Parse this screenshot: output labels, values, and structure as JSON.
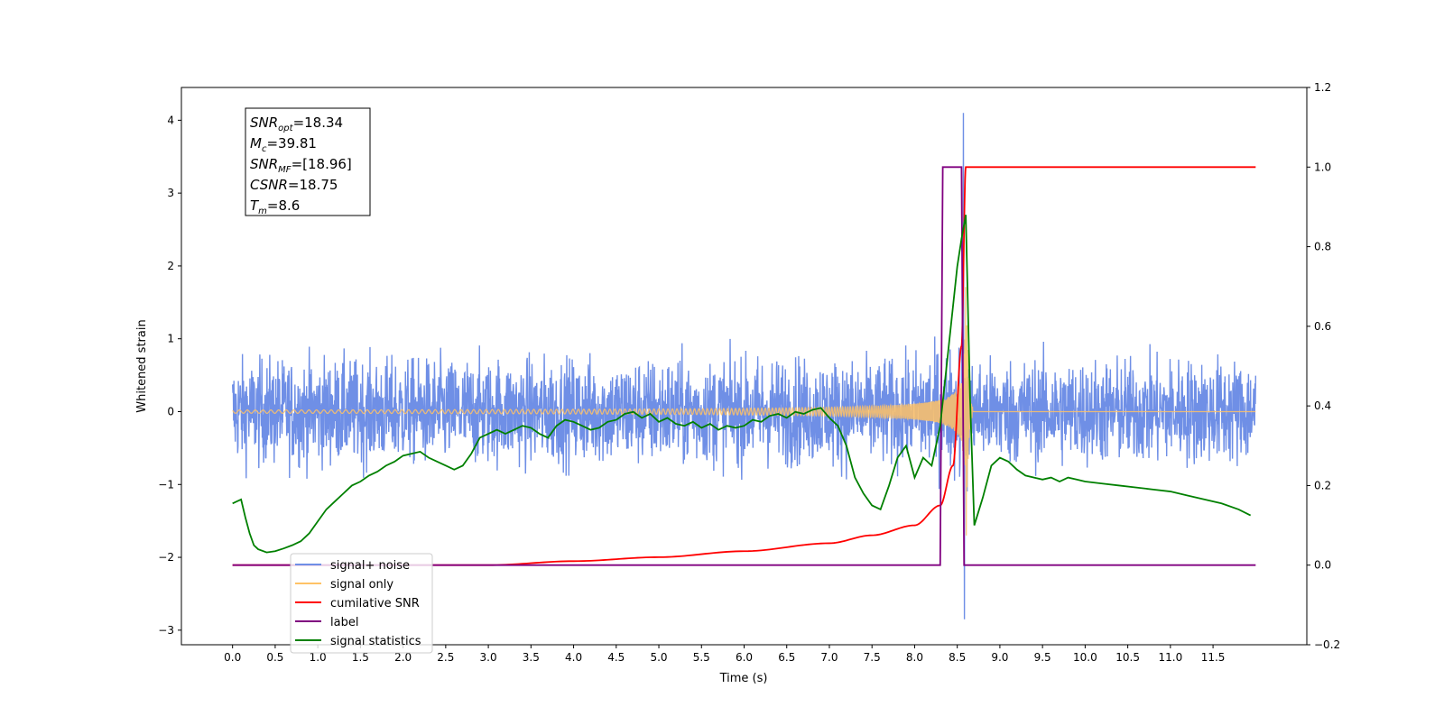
{
  "chart_data": {
    "type": "line",
    "xlabel": "Time (s)",
    "ylabel": "Whitened strain",
    "xlim": [
      -0.6,
      12.6
    ],
    "ylim": [
      -3.2,
      4.45
    ],
    "ylim_right": [
      -0.2,
      1.2
    ],
    "xticks": [
      0.0,
      0.5,
      1.0,
      1.5,
      2.0,
      2.5,
      3.0,
      3.5,
      4.0,
      4.5,
      5.0,
      5.5,
      6.0,
      6.5,
      7.0,
      7.5,
      8.0,
      8.5,
      9.0,
      9.5,
      10.0,
      10.5,
      11.0,
      11.5
    ],
    "xtick_labels": [
      "0.0",
      "0.5",
      "1.0",
      "1.5",
      "2.0",
      "2.5",
      "3.0",
      "3.5",
      "4.0",
      "4.5",
      "5.0",
      "5.5",
      "6.0",
      "6.5",
      "7.0",
      "7.5",
      "8.0",
      "8.5",
      "9.0",
      "9.5",
      "10.0",
      "10.5",
      "11.0",
      "11.5"
    ],
    "yticks_left": [
      -3,
      -2,
      -1,
      0,
      1,
      2,
      3,
      4
    ],
    "ytick_labels_left": [
      "−3",
      "−2",
      "−1",
      "0",
      "1",
      "2",
      "3",
      "4"
    ],
    "yticks_right": [
      -0.2,
      0.0,
      0.2,
      0.4,
      0.6,
      0.8,
      1.0,
      1.2
    ],
    "ytick_labels_right": [
      "−0.2",
      "0.0",
      "0.2",
      "0.4",
      "0.6",
      "0.8",
      "1.0",
      "1.2"
    ],
    "annotation": [
      {
        "base": "SNR",
        "sub": "opt",
        "value": "=18.34"
      },
      {
        "base": "M",
        "sub": "c",
        "value": "=39.81"
      },
      {
        "base": "SNR",
        "sub": "MF",
        "value": "=[18.96]"
      },
      {
        "base": "CSNR",
        "sub": "",
        "value": "=18.75"
      },
      {
        "base": "T",
        "sub": "m",
        "value": "=8.6"
      }
    ],
    "legend": {
      "placement": "lower-left",
      "entries": [
        {
          "label": "signal+ noise",
          "color": "#6f8fe6"
        },
        {
          "label": "signal only",
          "color": "#ffc266"
        },
        {
          "label": "cumilative SNR",
          "color": "#ff0000"
        },
        {
          "label": "label",
          "color": "#800080"
        },
        {
          "label": "signal statistics",
          "color": "#008000"
        }
      ]
    },
    "series": [
      {
        "name": "signal+ noise",
        "axis": "left",
        "color": "#6f8fe6",
        "x_range": [
          0.0,
          12.0
        ],
        "noise_amplitude": 0.65,
        "peak_x": 8.57,
        "peak_max": 4.1,
        "peak_min": -2.85
      },
      {
        "name": "signal only",
        "axis": "left",
        "color": "#ffc266",
        "x_range": [
          0.0,
          12.0
        ],
        "merger_time": 8.6,
        "peak_amplitude": 2.3
      },
      {
        "name": "cumilative SNR",
        "axis": "right",
        "color": "#ff0000",
        "x": [
          0.0,
          3.0,
          4.0,
          5.0,
          6.0,
          7.0,
          7.5,
          8.0,
          8.3,
          8.45,
          8.55,
          8.6,
          12.0
        ],
        "y": [
          0.0,
          0.0,
          0.01,
          0.02,
          0.035,
          0.055,
          0.075,
          0.1,
          0.15,
          0.25,
          0.55,
          1.0,
          1.0
        ]
      },
      {
        "name": "label",
        "axis": "right",
        "color": "#800080",
        "x": [
          0.0,
          8.3,
          8.33,
          8.55,
          8.58,
          12.0
        ],
        "y": [
          0.0,
          0.0,
          1.0,
          1.0,
          0.0,
          0.0
        ]
      },
      {
        "name": "signal statistics",
        "axis": "right",
        "color": "#008000",
        "x": [
          0.0,
          0.05,
          0.1,
          0.15,
          0.2,
          0.25,
          0.3,
          0.4,
          0.5,
          0.6,
          0.7,
          0.8,
          0.9,
          1.0,
          1.1,
          1.2,
          1.3,
          1.4,
          1.5,
          1.6,
          1.7,
          1.8,
          1.9,
          2.0,
          2.1,
          2.2,
          2.3,
          2.4,
          2.5,
          2.6,
          2.7,
          2.8,
          2.9,
          3.0,
          3.1,
          3.2,
          3.3,
          3.4,
          3.5,
          3.6,
          3.7,
          3.8,
          3.9,
          4.0,
          4.1,
          4.2,
          4.3,
          4.4,
          4.5,
          4.6,
          4.7,
          4.8,
          4.9,
          5.0,
          5.1,
          5.2,
          5.3,
          5.4,
          5.5,
          5.6,
          5.7,
          5.8,
          5.9,
          6.0,
          6.1,
          6.2,
          6.3,
          6.4,
          6.5,
          6.6,
          6.7,
          6.8,
          6.9,
          7.0,
          7.1,
          7.2,
          7.3,
          7.4,
          7.5,
          7.6,
          7.7,
          7.8,
          7.9,
          8.0,
          8.1,
          8.2,
          8.3,
          8.35,
          8.4,
          8.45,
          8.5,
          8.55,
          8.6,
          8.65,
          8.7,
          8.8,
          8.9,
          9.0,
          9.1,
          9.2,
          9.3,
          9.4,
          9.5,
          9.6,
          9.7,
          9.8,
          9.9,
          10.0,
          10.2,
          10.4,
          10.6,
          10.8,
          11.0,
          11.2,
          11.4,
          11.6,
          11.8,
          11.94
        ],
        "y": [
          0.155,
          0.16,
          0.165,
          0.12,
          0.08,
          0.05,
          0.04,
          0.032,
          0.035,
          0.042,
          0.05,
          0.06,
          0.08,
          0.11,
          0.14,
          0.16,
          0.18,
          0.2,
          0.21,
          0.225,
          0.235,
          0.25,
          0.26,
          0.275,
          0.28,
          0.285,
          0.27,
          0.26,
          0.25,
          0.24,
          0.25,
          0.28,
          0.32,
          0.33,
          0.34,
          0.33,
          0.34,
          0.35,
          0.345,
          0.33,
          0.32,
          0.35,
          0.365,
          0.36,
          0.35,
          0.34,
          0.345,
          0.36,
          0.365,
          0.38,
          0.385,
          0.37,
          0.38,
          0.36,
          0.37,
          0.355,
          0.35,
          0.36,
          0.345,
          0.355,
          0.34,
          0.35,
          0.345,
          0.35,
          0.365,
          0.36,
          0.375,
          0.38,
          0.37,
          0.385,
          0.38,
          0.39,
          0.395,
          0.37,
          0.35,
          0.3,
          0.22,
          0.18,
          0.15,
          0.14,
          0.2,
          0.27,
          0.3,
          0.22,
          0.27,
          0.25,
          0.35,
          0.45,
          0.55,
          0.65,
          0.75,
          0.82,
          0.88,
          0.42,
          0.1,
          0.17,
          0.25,
          0.27,
          0.26,
          0.24,
          0.225,
          0.22,
          0.215,
          0.22,
          0.21,
          0.22,
          0.215,
          0.21,
          0.205,
          0.2,
          0.195,
          0.19,
          0.185,
          0.175,
          0.165,
          0.155,
          0.14,
          0.125
        ]
      }
    ]
  }
}
